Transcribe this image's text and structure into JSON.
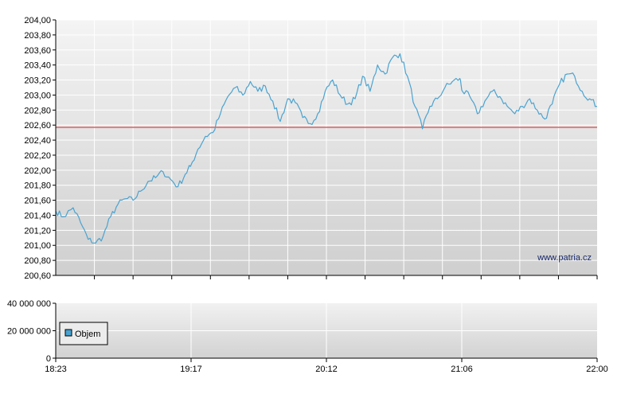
{
  "chart_data": [
    {
      "type": "line",
      "title": "",
      "xlabel": "",
      "ylabel": "",
      "ylim": [
        200.6,
        204.0
      ],
      "y_ticks": [
        "200,60",
        "200,80",
        "201,00",
        "201,20",
        "201,40",
        "201,60",
        "201,80",
        "202,00",
        "202,20",
        "202,40",
        "202,60",
        "202,80",
        "203,00",
        "203,20",
        "203,40",
        "203,60",
        "203,80",
        "204,00"
      ],
      "y_tick_values": [
        200.6,
        200.8,
        201.0,
        201.2,
        201.4,
        201.6,
        201.8,
        202.0,
        202.2,
        202.4,
        202.6,
        202.8,
        203.0,
        203.2,
        203.4,
        203.6,
        203.8,
        204.0
      ],
      "x_start": "18:23",
      "x_end": "22:00",
      "reference_line": {
        "value": 202.57,
        "color": "#e06060"
      },
      "series": [
        {
          "color": "#4aa3d0",
          "points": [
            [
              "18:23",
              201.46
            ],
            [
              "18:26",
              201.38
            ],
            [
              "18:30",
              201.5
            ],
            [
              "18:33",
              201.3
            ],
            [
              "18:36",
              201.08
            ],
            [
              "18:39",
              201.03
            ],
            [
              "18:42",
              201.12
            ],
            [
              "18:45",
              201.38
            ],
            [
              "18:48",
              201.55
            ],
            [
              "18:51",
              201.62
            ],
            [
              "18:54",
              201.6
            ],
            [
              "18:57",
              201.72
            ],
            [
              "19:00",
              201.85
            ],
            [
              "19:03",
              201.9
            ],
            [
              "19:06",
              201.98
            ],
            [
              "19:09",
              201.88
            ],
            [
              "19:12",
              201.78
            ],
            [
              "19:15",
              201.95
            ],
            [
              "19:17",
              202.05
            ],
            [
              "19:20",
              202.28
            ],
            [
              "19:23",
              202.45
            ],
            [
              "19:26",
              202.5
            ],
            [
              "19:29",
              202.75
            ],
            [
              "19:32",
              202.98
            ],
            [
              "19:35",
              203.1
            ],
            [
              "19:38",
              203.0
            ],
            [
              "19:41",
              203.18
            ],
            [
              "19:44",
              203.05
            ],
            [
              "19:47",
              203.12
            ],
            [
              "19:50",
              202.92
            ],
            [
              "19:53",
              202.65
            ],
            [
              "19:56",
              202.95
            ],
            [
              "19:59",
              202.9
            ],
            [
              "20:02",
              202.7
            ],
            [
              "20:05",
              202.62
            ],
            [
              "20:08",
              202.75
            ],
            [
              "20:11",
              203.05
            ],
            [
              "20:14",
              203.2
            ],
            [
              "20:17",
              203.0
            ],
            [
              "20:20",
              202.88
            ],
            [
              "20:23",
              202.95
            ],
            [
              "20:26",
              203.25
            ],
            [
              "20:29",
              203.05
            ],
            [
              "20:32",
              203.4
            ],
            [
              "20:35",
              203.28
            ],
            [
              "20:38",
              203.5
            ],
            [
              "20:41",
              203.55
            ],
            [
              "20:44",
              203.25
            ],
            [
              "20:47",
              202.85
            ],
            [
              "20:50",
              202.55
            ],
            [
              "20:53",
              202.85
            ],
            [
              "20:56",
              202.95
            ],
            [
              "20:59",
              203.1
            ],
            [
              "21:02",
              203.18
            ],
            [
              "21:05",
              203.22
            ],
            [
              "21:06",
              203.05
            ],
            [
              "21:09",
              202.98
            ],
            [
              "21:12",
              202.75
            ],
            [
              "21:15",
              202.92
            ],
            [
              "21:18",
              203.05
            ],
            [
              "21:21",
              202.98
            ],
            [
              "21:24",
              202.85
            ],
            [
              "21:27",
              202.75
            ],
            [
              "21:30",
              202.85
            ],
            [
              "21:33",
              202.95
            ],
            [
              "21:36",
              202.8
            ],
            [
              "21:39",
              202.68
            ],
            [
              "21:42",
              202.88
            ],
            [
              "21:45",
              203.15
            ],
            [
              "21:48",
              203.28
            ],
            [
              "21:51",
              203.25
            ],
            [
              "21:54",
              203.05
            ],
            [
              "21:57",
              202.95
            ],
            [
              "22:00",
              202.85
            ]
          ]
        }
      ],
      "watermark": "www.patria.cz"
    },
    {
      "type": "bar",
      "title": "",
      "ylim": [
        0,
        40000000
      ],
      "y_ticks": [
        "0",
        "20 000 000",
        "40 000 000"
      ],
      "y_tick_values": [
        0,
        20000000,
        40000000
      ],
      "x_ticks": [
        "18:23",
        "19:17",
        "20:12",
        "21:06",
        "22:00"
      ],
      "legend": {
        "label": "Objem",
        "placement": "top-left",
        "color": "#4aa3d0"
      },
      "values": []
    }
  ]
}
